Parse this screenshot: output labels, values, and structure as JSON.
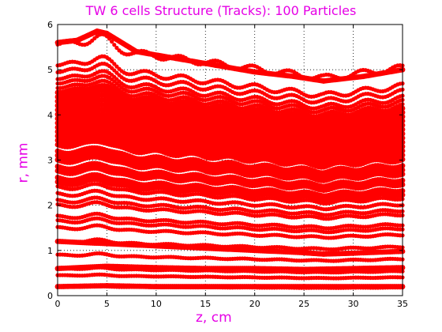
{
  "chart_data": {
    "type": "scatter",
    "title": "TW 6 cells Structure (Tracks): 100 Particles",
    "xlabel": "z, cm",
    "ylabel": "r, mm",
    "xlim": [
      0,
      35
    ],
    "ylim": [
      0,
      6
    ],
    "xticks": [
      0,
      5,
      10,
      15,
      20,
      25,
      30,
      35
    ],
    "yticks": [
      0,
      1,
      2,
      3,
      4,
      5,
      6
    ],
    "grid": true,
    "marker_color": "#ff0000",
    "track_initial_radii": [
      0.2,
      0.45,
      0.6,
      0.9,
      1.2,
      1.5,
      1.65,
      1.75,
      2.0,
      2.1,
      2.25,
      2.4,
      2.5,
      2.6,
      2.75,
      2.85,
      3.0,
      3.1,
      3.2,
      3.35,
      3.45,
      3.55,
      3.65,
      3.75,
      3.85,
      3.95,
      4.05,
      4.15,
      4.25,
      4.35,
      4.45,
      4.55,
      4.65,
      4.75,
      4.85,
      5.0,
      5.15,
      5.6
    ],
    "series": [
      {
        "x": [
          0,
          2,
          4,
          5,
          8,
          12,
          16,
          20,
          24,
          27,
          31,
          35
        ],
        "y": [
          5.6,
          5.65,
          5.85,
          5.8,
          5.4,
          5.25,
          5.1,
          4.95,
          4.85,
          4.75,
          4.85,
          5.0
        ]
      },
      {
        "x": [
          0,
          5,
          10,
          15,
          20,
          25,
          27,
          30,
          35
        ],
        "y": [
          1.2,
          1.15,
          1.1,
          1.05,
          1.0,
          0.95,
          0.92,
          0.94,
          0.98
        ]
      },
      {
        "x": [
          0,
          5,
          10,
          15,
          20,
          25,
          30,
          35
        ],
        "y": [
          0.6,
          0.65,
          0.62,
          0.6,
          0.6,
          0.58,
          0.6,
          0.62
        ]
      },
      {
        "x": [
          0,
          5,
          10,
          15,
          20,
          25,
          30,
          35
        ],
        "y": [
          0.2,
          0.22,
          0.2,
          0.2,
          0.2,
          0.2,
          0.2,
          0.2
        ]
      }
    ]
  }
}
